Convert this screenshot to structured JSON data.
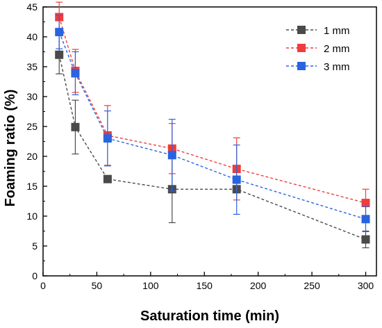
{
  "chart_data": {
    "type": "line",
    "xlabel": "Saturation time (min)",
    "ylabel": "Foaming ratio (%)",
    "xlim": [
      0,
      310
    ],
    "ylim": [
      0,
      45
    ],
    "xticks": [
      0,
      50,
      100,
      150,
      200,
      250,
      300
    ],
    "yticks": [
      0,
      5,
      10,
      15,
      20,
      25,
      30,
      35,
      40,
      45
    ],
    "xtick_labels": [
      "0",
      "50",
      "100",
      "150",
      "200",
      "250",
      "300"
    ],
    "ytick_labels": [
      "0",
      "5",
      "10",
      "15",
      "20",
      "25",
      "30",
      "35",
      "40",
      "45"
    ],
    "legend_position": "top-right",
    "grid": false,
    "series": [
      {
        "name": "1 mm",
        "color": "#4a4a4a",
        "x": [
          15,
          30,
          60,
          120,
          180,
          300
        ],
        "values": [
          37.0,
          24.9,
          16.2,
          14.5,
          14.5,
          6.1
        ],
        "errors": [
          3.2,
          4.5,
          0,
          5.6,
          0,
          1.4
        ]
      },
      {
        "name": "2 mm",
        "color": "#f03c3c",
        "x": [
          15,
          30,
          60,
          120,
          180,
          300
        ],
        "values": [
          43.3,
          34.3,
          23.5,
          21.3,
          17.9,
          12.2
        ],
        "errors": [
          2.5,
          3.6,
          5.0,
          4.2,
          5.2,
          2.3
        ]
      },
      {
        "name": "3 mm",
        "color": "#2864e0",
        "x": [
          15,
          30,
          60,
          120,
          180,
          300
        ],
        "values": [
          40.8,
          33.9,
          23.0,
          20.2,
          16.1,
          9.5
        ],
        "errors": [
          2.8,
          3.6,
          4.6,
          6.0,
          5.8,
          2.1
        ]
      }
    ]
  }
}
